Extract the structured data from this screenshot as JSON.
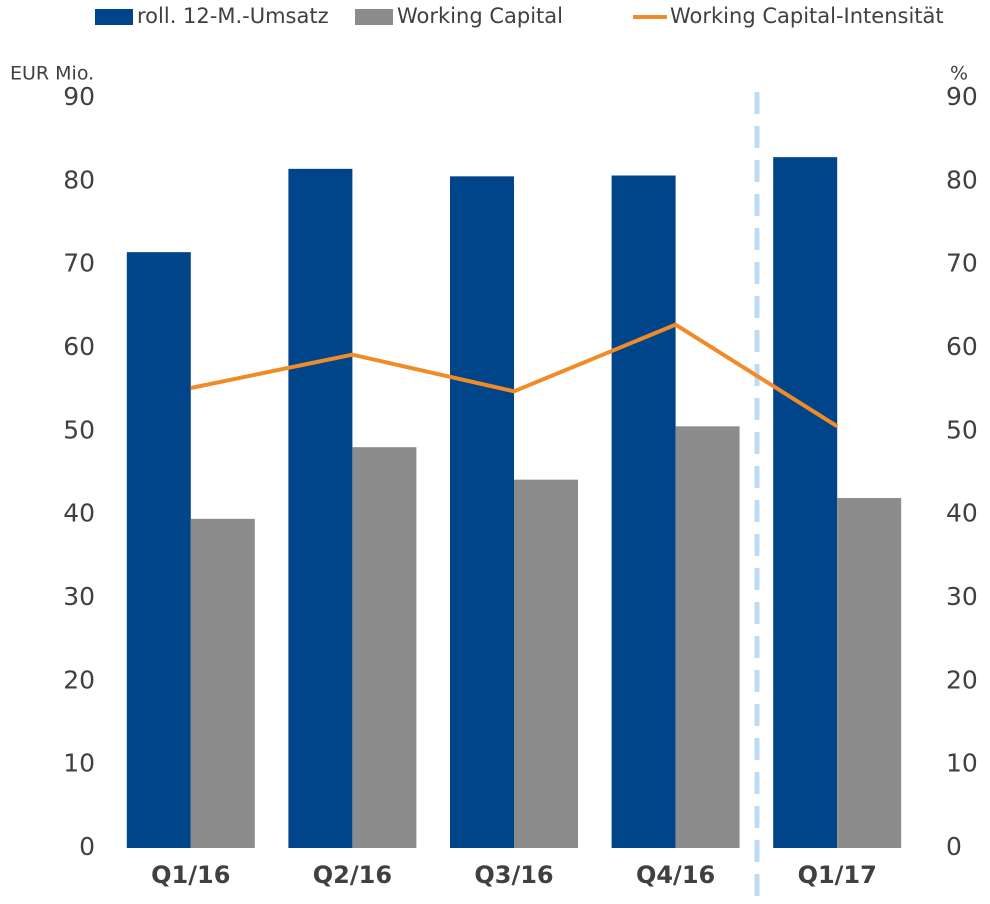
{
  "chart_data": {
    "type": "bar",
    "categories": [
      "Q1/16",
      "Q2/16",
      "Q3/16",
      "Q4/16",
      "Q1/17"
    ],
    "series": [
      {
        "name": "roll. 12-M.-Umsatz",
        "color": "#00458a",
        "values": [
          71.5,
          81.5,
          80.6,
          80.7,
          82.9
        ]
      },
      {
        "name": "Working Capital",
        "color": "#8c8c8c",
        "values": [
          39.5,
          48.1,
          44.2,
          50.6,
          42.0
        ]
      },
      {
        "name": "Working Capital-Intensität",
        "type": "line",
        "axis": "y2",
        "color": "#f08c28",
        "values": [
          55.2,
          59.2,
          54.8,
          62.8,
          50.6
        ]
      }
    ],
    "y_label": "EUR Mio.",
    "y2_label": "%",
    "ylim": [
      0,
      90
    ],
    "yticks": [
      0,
      10,
      20,
      30,
      40,
      50,
      60,
      70,
      80,
      90
    ],
    "y2lim": [
      0,
      90
    ],
    "y2ticks": [
      0,
      10,
      20,
      30,
      40,
      50,
      60,
      70,
      80,
      90
    ],
    "grid": false,
    "legend": "top"
  }
}
